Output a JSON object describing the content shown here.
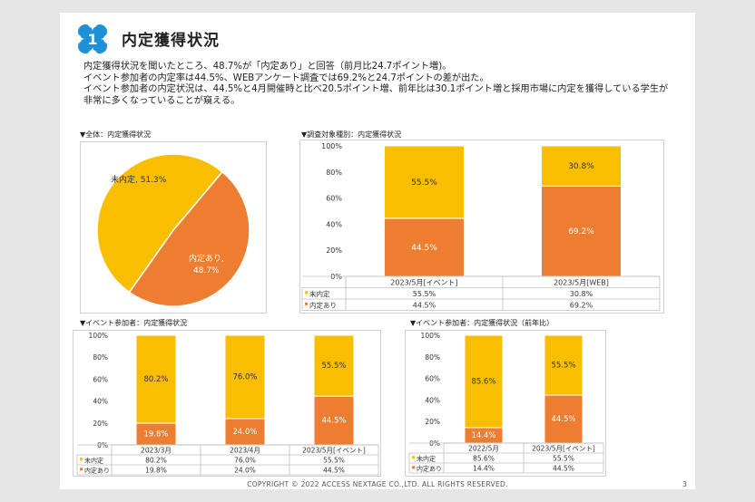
{
  "header": {
    "badge_number": "1",
    "title": "内定獲得状況"
  },
  "summary": [
    "内定獲得状況を聞いたところ、48.7%が「内定あり」と回答（前月比24.7ポイント増)。",
    "イベント参加者の内定率は44.5%、WEBアンケート調査では69.2%と24.7ポイントの差が出た。",
    "イベント参加者の内定状況は、44.5%と4月開催時と比べ20.5ポイント増、前年比は30.1ポイント増と採用市場に内定を獲得している学生が",
    "非常に多くなっていることが窺える。"
  ],
  "chart_data": [
    {
      "type": "pie",
      "section_title": "▼全体：内定獲得状況",
      "slices": [
        {
          "label": "未内定",
          "value": 51.3,
          "text": "未内定, 51.3%",
          "color": "#F9BE00"
        },
        {
          "label": "内定あり",
          "value": 48.7,
          "text1": "内定あり,",
          "text2": "48.7%",
          "color": "#ED7D31"
        }
      ]
    },
    {
      "type": "bar",
      "stacked": true,
      "section_title": "▼調査対象種別：内定獲得状況",
      "categories": [
        "2023/5月[イベント]",
        "2023/5月[WEB]"
      ],
      "series": [
        {
          "name": "未内定",
          "values": [
            55.5,
            30.8
          ],
          "color": "#F9BE00"
        },
        {
          "name": "内定あり",
          "values": [
            44.5,
            69.2
          ],
          "color": "#ED7D31"
        }
      ],
      "y_ticks": [
        "0%",
        "20%",
        "40%",
        "60%",
        "80%",
        "100%"
      ],
      "ylim": [
        0,
        100
      ],
      "table_rows": [
        {
          "label": "未内定",
          "values": [
            "55.5%",
            "30.8%"
          ]
        },
        {
          "label": "内定あり",
          "values": [
            "44.5%",
            "69.2%"
          ]
        }
      ]
    },
    {
      "type": "bar",
      "stacked": true,
      "section_title": "▼イベント参加者：内定獲得状況",
      "categories": [
        "2023/3月",
        "2023/4月",
        "2023/5月[イベント]"
      ],
      "series": [
        {
          "name": "未内定",
          "values": [
            80.2,
            76.0,
            55.5
          ],
          "color": "#F9BE00"
        },
        {
          "name": "内定あり",
          "values": [
            19.8,
            24.0,
            44.5
          ],
          "color": "#ED7D31"
        }
      ],
      "y_ticks": [
        "0%",
        "20%",
        "40%",
        "60%",
        "80%",
        "100%"
      ],
      "ylim": [
        0,
        100
      ],
      "table_rows": [
        {
          "label": "未内定",
          "values": [
            "80.2%",
            "76.0%",
            "55.5%"
          ]
        },
        {
          "label": "内定あり",
          "values": [
            "19.8%",
            "24.0%",
            "44.5%"
          ]
        }
      ]
    },
    {
      "type": "bar",
      "stacked": true,
      "section_title": "▼イベント参加者：内定獲得状況（前年比）",
      "categories": [
        "2022/5月",
        "2023/5月[イベント]"
      ],
      "series": [
        {
          "name": "未内定",
          "values": [
            85.6,
            55.5
          ],
          "color": "#F9BE00"
        },
        {
          "name": "内定あり",
          "values": [
            14.4,
            44.5
          ],
          "color": "#ED7D31"
        }
      ],
      "y_ticks": [
        "0%",
        "20%",
        "40%",
        "60%",
        "80%",
        "100%"
      ],
      "ylim": [
        0,
        100
      ],
      "table_rows": [
        {
          "label": "未内定",
          "values": [
            "85.6%",
            "55.5%"
          ]
        },
        {
          "label": "内定あり",
          "values": [
            "14.4%",
            "44.5%"
          ]
        }
      ]
    }
  ],
  "footer": {
    "copyright": "COPYRIGHT © 2022 ACCESS NEXTAGE CO.,LTD. ALL RIGHTS RESERVED.",
    "page_number": "3"
  },
  "colors": {
    "not_offered": "#F9BE00",
    "offered": "#ED7D31",
    "logo": "#1E90D8"
  }
}
